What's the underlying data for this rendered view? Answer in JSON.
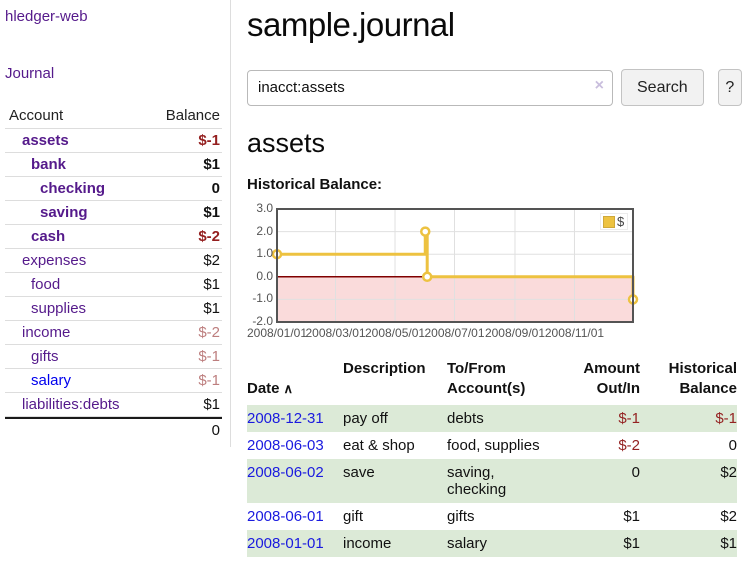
{
  "app": {
    "brand": "hledger-web"
  },
  "colors": {
    "link_visited": "#551a8b",
    "link_unvisited": "#0000ee",
    "negative_strong": "#941f1f",
    "negative_soft": "#bd7e7e",
    "table_negative": "#942222",
    "row_stripe_green": "#dcead7",
    "series_yellow": "#edc240",
    "below_zero_fill": "#fadbdb",
    "zero_line": "#800000",
    "chart_border": "#545454",
    "gridline": "#e0e0e0"
  },
  "sidebar": {
    "journal_label": "Journal",
    "account_header": "Account",
    "balance_header": "Balance",
    "accounts": [
      {
        "name": "assets",
        "depth": 1,
        "balance": "$-1",
        "bold": true,
        "balance_class": "neg-strong"
      },
      {
        "name": "bank",
        "depth": 2,
        "balance": "$1",
        "bold": true,
        "balance_class": ""
      },
      {
        "name": "checking",
        "depth": 3,
        "balance": "0",
        "bold": true,
        "balance_class": ""
      },
      {
        "name": "saving",
        "depth": 3,
        "balance": "$1",
        "bold": true,
        "balance_class": ""
      },
      {
        "name": "cash",
        "depth": 2,
        "balance": "$-2",
        "bold": true,
        "balance_class": "neg-strong"
      },
      {
        "name": "expenses",
        "depth": 1,
        "balance": "$2",
        "bold": false,
        "balance_class": ""
      },
      {
        "name": "food",
        "depth": 2,
        "balance": "$1",
        "bold": false,
        "balance_class": ""
      },
      {
        "name": "supplies",
        "depth": 2,
        "balance": "$1",
        "bold": false,
        "balance_class": ""
      },
      {
        "name": "income",
        "depth": 1,
        "balance": "$-2",
        "bold": false,
        "balance_class": "neg-soft"
      },
      {
        "name": "gifts",
        "depth": 2,
        "balance": "$-1",
        "bold": false,
        "balance_class": "neg-soft"
      },
      {
        "name": "salary",
        "depth": 2,
        "balance": "$-1",
        "bold": false,
        "balance_class": "neg-soft",
        "unvisited": true
      },
      {
        "name": "liabilities:debts",
        "depth": 1,
        "balance": "$1",
        "bold": false,
        "balance_class": ""
      }
    ],
    "total": "0"
  },
  "header": {
    "title": "sample.journal"
  },
  "search": {
    "value": "inacct:assets",
    "clear_icon": "×",
    "button_label": "Search",
    "help_label": "?"
  },
  "account_page": {
    "heading": "assets",
    "chart_label": "Historical Balance:"
  },
  "chart_data": {
    "type": "line",
    "title": "Historical Balance:",
    "step": true,
    "xlim": [
      "2008-01-01",
      "2008-12-31"
    ],
    "ylim": [
      -2,
      3
    ],
    "grid": true,
    "legend_position": "top-right",
    "series": [
      {
        "name": "$",
        "color": "#edc240",
        "points": [
          [
            "2008-01-01",
            1
          ],
          [
            "2008-06-01",
            2
          ],
          [
            "2008-06-03",
            0
          ],
          [
            "2008-12-31",
            -1
          ]
        ]
      }
    ],
    "y_ticks": [
      {
        "value": 3,
        "label": "3.0"
      },
      {
        "value": 2,
        "label": "2.0"
      },
      {
        "value": 1,
        "label": "1.0"
      },
      {
        "value": 0,
        "label": "0.0"
      },
      {
        "value": -1,
        "label": "-1.0"
      },
      {
        "value": -2,
        "label": "-2.0"
      }
    ],
    "x_ticks": [
      {
        "date": "2008-01-01",
        "label": "2008/01/01"
      },
      {
        "date": "2008-03-01",
        "label": "2008/03/01"
      },
      {
        "date": "2008-05-01",
        "label": "2008/05/01"
      },
      {
        "date": "2008-07-01",
        "label": "2008/07/01"
      },
      {
        "date": "2008-09-01",
        "label": "2008/09/01"
      },
      {
        "date": "2008-11-01",
        "label": "2008/11/01"
      }
    ],
    "legend": {
      "label": "$"
    }
  },
  "register": {
    "headers": {
      "date": "Date",
      "sort_icon": "∧",
      "description": "Description",
      "accounts": "To/From\nAccount(s)",
      "amount": "Amount\nOut/In",
      "balance": "Historical\nBalance"
    },
    "rows": [
      {
        "date": "2008-12-31",
        "description": "pay off",
        "accounts": "debts",
        "amount": "$-1",
        "amount_neg": true,
        "balance": "$-1",
        "balance_neg": true,
        "shade": true
      },
      {
        "date": "2008-06-03",
        "description": "eat & shop",
        "accounts": "food, supplies",
        "amount": "$-2",
        "amount_neg": true,
        "balance": "0",
        "balance_neg": false,
        "shade": false
      },
      {
        "date": "2008-06-02",
        "description": "save",
        "accounts": "saving,\nchecking",
        "amount": "0",
        "amount_neg": false,
        "balance": "$2",
        "balance_neg": false,
        "shade": true
      },
      {
        "date": "2008-06-01",
        "description": "gift",
        "accounts": "gifts",
        "amount": "$1",
        "amount_neg": false,
        "balance": "$2",
        "balance_neg": false,
        "shade": false
      },
      {
        "date": "2008-01-01",
        "description": "income",
        "accounts": "salary",
        "amount": "$1",
        "amount_neg": false,
        "balance": "$1",
        "balance_neg": false,
        "shade": true
      }
    ]
  }
}
